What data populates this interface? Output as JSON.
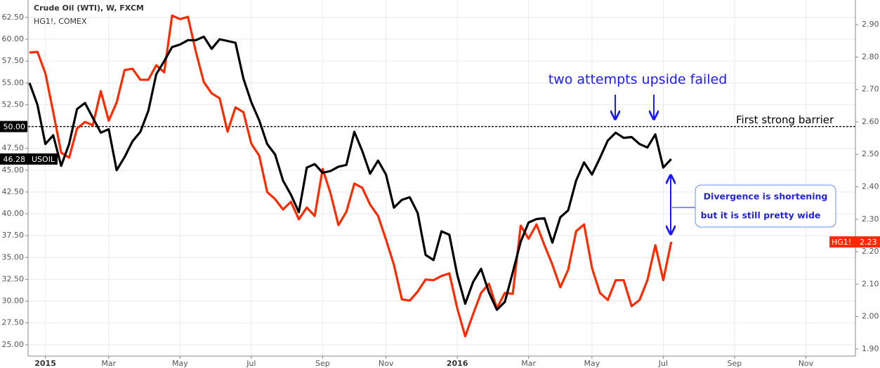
{
  "chart_data": {
    "type": "line",
    "title": "Crude Oil (WTI), W, FXCM",
    "subtitle": "HG1!, COMEX",
    "categories": [
      null,
      null,
      "2015",
      null,
      null,
      null,
      null,
      null,
      null,
      null,
      "Mar",
      null,
      null,
      null,
      null,
      null,
      null,
      null,
      null,
      "May",
      null,
      null,
      null,
      null,
      null,
      null,
      null,
      null,
      "Jul",
      null,
      null,
      null,
      null,
      null,
      null,
      null,
      null,
      "Sep",
      null,
      null,
      null,
      null,
      null,
      null,
      null,
      "Nov",
      null,
      null,
      null,
      null,
      null,
      null,
      null,
      null,
      "2016",
      null,
      null,
      null,
      null,
      null,
      null,
      null,
      null,
      "Mar",
      null,
      null,
      null,
      null,
      null,
      null,
      null,
      "May",
      null,
      null,
      null,
      null,
      null,
      null,
      null,
      null,
      "Jul",
      null,
      null,
      null,
      null,
      null,
      null,
      null,
      null,
      "Sep",
      null,
      null,
      null,
      null,
      null,
      null,
      null,
      null,
      "Nov",
      null
    ],
    "series": [
      {
        "name": "USOIL",
        "color": "#000000",
        "last_label": "46.28",
        "values": [
          55,
          52.5,
          48,
          49,
          45.5,
          48,
          52,
          52.7,
          51,
          49.3,
          49.7,
          45,
          46.5,
          48.3,
          49.4,
          51.8,
          56,
          57.5,
          59.1,
          59.4,
          59.9,
          59.9,
          60.3,
          58.9,
          60,
          59.8,
          59.6,
          55.5,
          52.8,
          50.7,
          48,
          46.8,
          43.8,
          42.2,
          40.2,
          45.3,
          45.7,
          44.7,
          44.9,
          45.4,
          45.6,
          49.4,
          47.2,
          44.6,
          46.1,
          44.5,
          40.7,
          41.6,
          41.9,
          40.1,
          35.3,
          34.7,
          38,
          37.6,
          33,
          29.7,
          32.2,
          33.7,
          31,
          29,
          29.9,
          33.3,
          36.8,
          39,
          39.4,
          39.5,
          36.7,
          39.6,
          40.4,
          43.8,
          45.9,
          44.5,
          46.4,
          48.4,
          49.3,
          48.7,
          48.8,
          48,
          47.6,
          49.1,
          45.3,
          46.28,
          null,
          null,
          null,
          null,
          null,
          null,
          null,
          null,
          null,
          null,
          null,
          null,
          null,
          null,
          null,
          null,
          null,
          null
        ]
      },
      {
        "name": "HG1!",
        "color": "#ff2a00",
        "axis": "y2",
        "last_label": "2.23",
        "values": [
          2.814,
          2.816,
          2.75,
          2.63,
          2.505,
          2.49,
          2.58,
          2.6,
          2.59,
          2.695,
          2.604,
          2.66,
          2.76,
          2.764,
          2.73,
          2.73,
          2.775,
          2.753,
          2.928,
          2.917,
          2.924,
          2.816,
          2.723,
          2.688,
          2.673,
          2.57,
          2.645,
          2.63,
          2.533,
          2.496,
          2.384,
          2.362,
          2.33,
          2.354,
          2.3,
          2.336,
          2.31,
          2.455,
          2.38,
          2.282,
          2.323,
          2.41,
          2.397,
          2.345,
          2.31,
          2.237,
          2.159,
          2.053,
          2.049,
          2.077,
          2.114,
          2.112,
          2.125,
          2.133,
          2.025,
          1.939,
          2.008,
          2.073,
          2.101,
          2.025,
          2.073,
          2.07,
          2.28,
          2.24,
          2.284,
          2.22,
          2.16,
          2.09,
          2.144,
          2.263,
          2.284,
          2.15,
          2.073,
          2.051,
          2.112,
          2.112,
          2.032,
          2.051,
          2.112,
          2.22,
          2.112,
          2.23,
          null,
          null,
          null,
          null,
          null,
          null,
          null,
          null,
          null,
          null,
          null,
          null,
          null,
          null,
          null,
          null,
          null,
          null
        ]
      }
    ],
    "ylim": [
      23.7,
      64.5
    ],
    "yticks": [
      {
        "value": 25,
        "label": "25.00"
      },
      {
        "value": 27.5,
        "label": "27.50"
      },
      {
        "value": 30,
        "label": "30.00"
      },
      {
        "value": 32.5,
        "label": "32.50"
      },
      {
        "value": 35,
        "label": "35.00"
      },
      {
        "value": 37.5,
        "label": "37.50"
      },
      {
        "value": 40,
        "label": "40.00"
      },
      {
        "value": 42.5,
        "label": "42.50"
      },
      {
        "value": 45,
        "label": "45.00"
      },
      {
        "value": 47.5,
        "label": "47.50"
      },
      {
        "value": 50,
        "label": "50.00"
      },
      {
        "value": 52.5,
        "label": "52.50"
      },
      {
        "value": 55,
        "label": "55.00"
      },
      {
        "value": 57.5,
        "label": "57.50"
      },
      {
        "value": 60,
        "label": "60.00"
      },
      {
        "value": 62.5,
        "label": "62.50"
      }
    ],
    "y2lim": [
      1.878,
      2.976
    ],
    "y2ticks": [
      {
        "value": 1.9,
        "label": "1.90"
      },
      {
        "value": 2,
        "label": "2.00"
      },
      {
        "value": 2.1,
        "label": "2.10"
      },
      {
        "value": 2.2,
        "label": "2.20"
      },
      {
        "value": 2.3,
        "label": "2.30"
      },
      {
        "value": 2.4,
        "label": "2.40"
      },
      {
        "value": 2.5,
        "label": "2.50"
      },
      {
        "value": 2.6,
        "label": "2.60"
      },
      {
        "value": 2.7,
        "label": "2.70"
      },
      {
        "value": 2.8,
        "label": "2.80"
      },
      {
        "value": 2.9,
        "label": "2.90"
      }
    ],
    "hline": {
      "value": 50,
      "label": "50.00",
      "text": "First strong barrier"
    },
    "annotations": [
      "two attempts upside failed",
      "Divergence is shortening",
      "but it is still pretty wide"
    ],
    "grid": true
  }
}
